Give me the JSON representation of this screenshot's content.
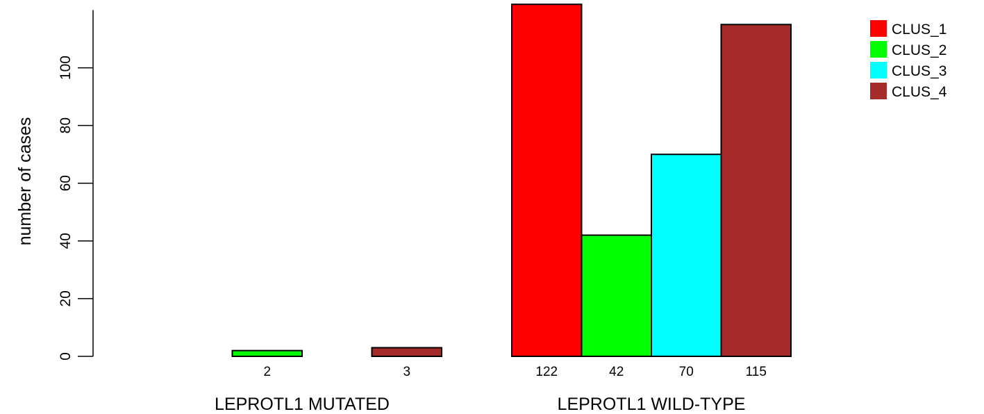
{
  "chart_data": {
    "type": "bar",
    "ylabel": "number of cases",
    "ylim": [
      0,
      122
    ],
    "y_ticks": [
      "0",
      "20",
      "40",
      "60",
      "80",
      "100"
    ],
    "y_tick_values": [
      0,
      20,
      40,
      60,
      80,
      100
    ],
    "groups": [
      {
        "label": "LEPROTL1 MUTATED",
        "bars": [
          {
            "series": "CLUS_1",
            "value": 0,
            "label": ""
          },
          {
            "series": "CLUS_2",
            "value": 2,
            "label": "2"
          },
          {
            "series": "CLUS_3",
            "value": 0,
            "label": ""
          },
          {
            "series": "CLUS_4",
            "value": 3,
            "label": "3"
          }
        ]
      },
      {
        "label": "LEPROTL1 WILD-TYPE",
        "bars": [
          {
            "series": "CLUS_1",
            "value": 122,
            "label": "122"
          },
          {
            "series": "CLUS_2",
            "value": 42,
            "label": "42"
          },
          {
            "series": "CLUS_3",
            "value": 70,
            "label": "70"
          },
          {
            "series": "CLUS_4",
            "value": 115,
            "label": "115"
          }
        ]
      }
    ],
    "legend": {
      "placement": "top-right",
      "entries": [
        {
          "name": "CLUS_1",
          "color": "#ff0000"
        },
        {
          "name": "CLUS_2",
          "color": "#00ff00"
        },
        {
          "name": "CLUS_3",
          "color": "#00ffff"
        },
        {
          "name": "CLUS_4",
          "color": "#a52a2a"
        }
      ]
    },
    "grid": false
  }
}
